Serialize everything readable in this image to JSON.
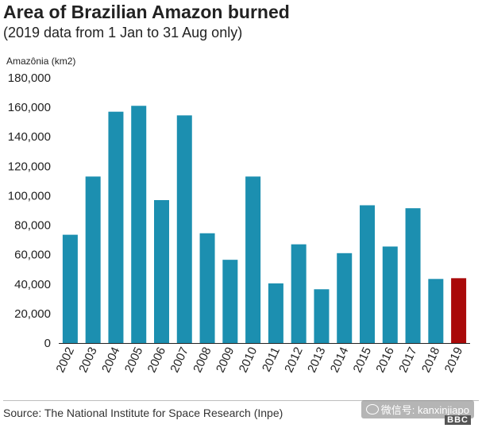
{
  "title": "Area of Brazilian Amazon burned",
  "subtitle": "(2019 data from 1 Jan to 31 Aug only)",
  "source": "Source: The National Institute for Space Research (Inpe)",
  "watermark": "微信号: kanxinjiapo",
  "logo_text": "BBC",
  "colors": {
    "bar": "#1c8fb0",
    "highlight": "#a90a0a",
    "axis": "#222222"
  },
  "chart_data": {
    "type": "bar",
    "title": "Area of Brazilian Amazon burned",
    "subtitle": "(2019 data from 1 Jan to 31 Aug only)",
    "ylabel": "Amazônia (km2)",
    "xlabel": "",
    "ylim": [
      0,
      180000
    ],
    "yticks": [
      0,
      20000,
      40000,
      60000,
      80000,
      100000,
      120000,
      140000,
      160000,
      180000
    ],
    "ytick_labels": [
      "0",
      "20,000",
      "40,000",
      "60,000",
      "80,000",
      "100,000",
      "120,000",
      "140,000",
      "160,000",
      "180,000"
    ],
    "categories": [
      "2002",
      "2003",
      "2004",
      "2005",
      "2006",
      "2007",
      "2008",
      "2009",
      "2010",
      "2011",
      "2012",
      "2013",
      "2014",
      "2015",
      "2016",
      "2017",
      "2018",
      "2019"
    ],
    "values": [
      73500,
      113000,
      157000,
      161000,
      97000,
      154500,
      74500,
      56500,
      113000,
      40500,
      67000,
      36500,
      61000,
      93500,
      65500,
      91500,
      43500,
      44000
    ],
    "highlight_category": "2019",
    "grid": false,
    "legend": "none"
  }
}
